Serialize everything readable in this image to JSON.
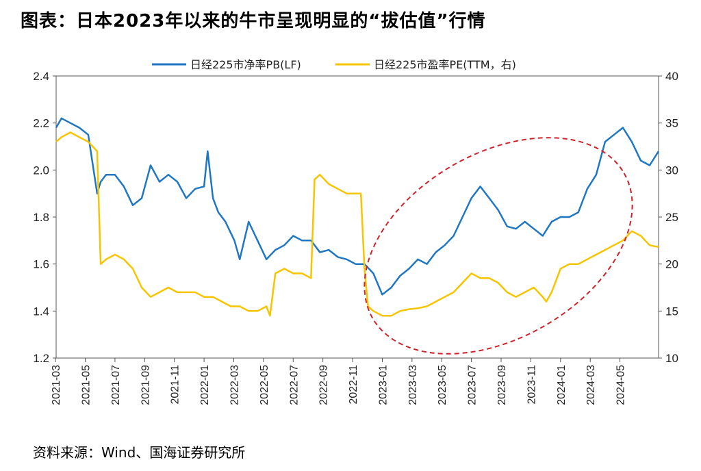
{
  "title": "图表：日本2023年以来的牛市呈现明显的“拔估值”行情",
  "source": "资料来源：Wind、国海证券研究所",
  "chart_data": {
    "type": "line",
    "legend": {
      "placement": "top-center"
    },
    "x_ticks": [
      "2021-03",
      "2021-05",
      "2021-07",
      "2021-09",
      "2021-11",
      "2022-01",
      "2022-03",
      "2022-05",
      "2022-07",
      "2022-09",
      "2022-11",
      "2023-01",
      "2023-03",
      "2023-05",
      "2023-07",
      "2023-09",
      "2023-11",
      "2024-01",
      "2024-03",
      "2024-05"
    ],
    "y_left": {
      "ticks": [
        "1.2",
        "1.4",
        "1.6",
        "1.8",
        "2.0",
        "2.2",
        "2.4"
      ],
      "ylim": [
        1.2,
        2.4
      ]
    },
    "y_right": {
      "ticks": [
        "10",
        "15",
        "20",
        "25",
        "30",
        "35",
        "40"
      ],
      "ylim": [
        10,
        40
      ]
    },
    "series": [
      {
        "name": "日经225市净率PB(LF)",
        "axis": "left",
        "color": "#1f77c4",
        "x": [
          2021.17,
          2021.2,
          2021.25,
          2021.3,
          2021.35,
          2021.4,
          2021.42,
          2021.45,
          2021.5,
          2021.55,
          2021.6,
          2021.65,
          2021.7,
          2021.75,
          2021.8,
          2021.85,
          2021.9,
          2021.95,
          2022.0,
          2022.02,
          2022.05,
          2022.08,
          2022.12,
          2022.17,
          2022.2,
          2022.25,
          2022.3,
          2022.35,
          2022.4,
          2022.45,
          2022.5,
          2022.55,
          2022.6,
          2022.65,
          2022.7,
          2022.75,
          2022.8,
          2022.85,
          2022.9,
          2022.95,
          2023.0,
          2023.05,
          2023.1,
          2023.15,
          2023.2,
          2023.25,
          2023.3,
          2023.35,
          2023.4,
          2023.45,
          2023.5,
          2023.55,
          2023.6,
          2023.65,
          2023.7,
          2023.75,
          2023.8,
          2023.85,
          2023.9,
          2023.95,
          2024.0,
          2024.05,
          2024.1,
          2024.15,
          2024.2,
          2024.25,
          2024.3,
          2024.35,
          2024.4,
          2024.45,
          2024.5,
          2024.55
        ],
        "values": [
          2.18,
          2.22,
          2.2,
          2.18,
          2.15,
          1.9,
          1.95,
          1.98,
          1.98,
          1.93,
          1.85,
          1.88,
          2.02,
          1.95,
          1.98,
          1.95,
          1.88,
          1.92,
          1.93,
          2.08,
          1.88,
          1.82,
          1.78,
          1.7,
          1.62,
          1.78,
          1.7,
          1.62,
          1.66,
          1.68,
          1.72,
          1.7,
          1.7,
          1.65,
          1.66,
          1.63,
          1.62,
          1.6,
          1.6,
          1.56,
          1.47,
          1.5,
          1.55,
          1.58,
          1.62,
          1.6,
          1.65,
          1.68,
          1.72,
          1.8,
          1.88,
          1.93,
          1.88,
          1.83,
          1.76,
          1.75,
          1.78,
          1.75,
          1.72,
          1.78,
          1.8,
          1.8,
          1.82,
          1.92,
          1.98,
          2.12,
          2.15,
          2.18,
          2.12,
          2.04,
          2.02,
          2.08
        ]
      },
      {
        "name": "日经225市盈率PE(TTM，右)",
        "axis": "right",
        "color": "#f7c400",
        "x": [
          2021.17,
          2021.2,
          2021.25,
          2021.3,
          2021.35,
          2021.4,
          2021.42,
          2021.45,
          2021.5,
          2021.55,
          2021.6,
          2021.65,
          2021.7,
          2021.75,
          2021.8,
          2021.85,
          2021.9,
          2021.95,
          2022.0,
          2022.05,
          2022.1,
          2022.15,
          2022.2,
          2022.25,
          2022.3,
          2022.35,
          2022.37,
          2022.4,
          2022.45,
          2022.5,
          2022.55,
          2022.6,
          2022.62,
          2022.65,
          2022.7,
          2022.75,
          2022.8,
          2022.85,
          2022.88,
          2022.9,
          2022.92,
          2022.95,
          2023.0,
          2023.05,
          2023.1,
          2023.15,
          2023.2,
          2023.25,
          2023.3,
          2023.35,
          2023.4,
          2023.45,
          2023.5,
          2023.55,
          2023.6,
          2023.65,
          2023.7,
          2023.75,
          2023.8,
          2023.85,
          2023.9,
          2023.92,
          2023.95,
          2024.0,
          2024.05,
          2024.1,
          2024.15,
          2024.2,
          2024.25,
          2024.3,
          2024.35,
          2024.4,
          2024.45,
          2024.5,
          2024.55
        ],
        "values": [
          33,
          33.5,
          34,
          33.5,
          33,
          32,
          20,
          20.5,
          21,
          20.5,
          19.5,
          17.5,
          16.5,
          17,
          17.5,
          17,
          17,
          17,
          16.5,
          16.5,
          16,
          15.5,
          15.5,
          15,
          15,
          15.5,
          14.5,
          19,
          19.5,
          19,
          19,
          18.5,
          29,
          29.5,
          28.5,
          28,
          27.5,
          27.5,
          27.5,
          19.5,
          15.5,
          15,
          14.5,
          14.5,
          15,
          15.2,
          15.3,
          15.5,
          16,
          16.5,
          17,
          18,
          19,
          18.5,
          18.5,
          18,
          17,
          16.5,
          17,
          17.5,
          16.5,
          16,
          17,
          19.5,
          20,
          20,
          20.5,
          21,
          21.5,
          22,
          22.5,
          23.5,
          23,
          22,
          21.8
        ]
      }
    ]
  }
}
